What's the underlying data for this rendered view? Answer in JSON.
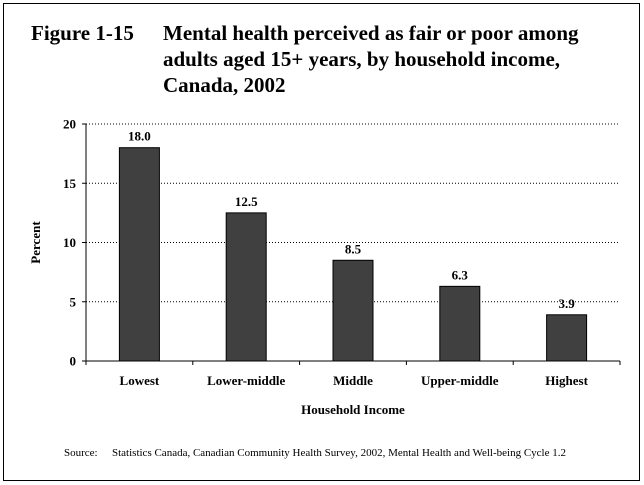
{
  "figure": {
    "number": "Figure 1-15",
    "title": "Mental health perceived as fair or poor among adults aged 15+ years, by household income, Canada, 2002"
  },
  "source": {
    "label": "Source:",
    "text": "Statistics Canada, Canadian Community Health Survey, 2002, Mental Health and Well-being Cycle 1.2"
  },
  "chart_data": {
    "type": "bar",
    "title": "Mental health perceived as fair or poor among adults aged 15+ years, by household income, Canada, 2002",
    "xlabel": "Household Income",
    "ylabel": "Percent",
    "categories": [
      "Lowest",
      "Lower-middle",
      "Middle",
      "Upper-middle",
      "Highest"
    ],
    "values": [
      18.0,
      12.5,
      8.5,
      6.3,
      3.9
    ],
    "value_labels": [
      "18.0",
      "12.5",
      "8.5",
      "6.3",
      "3.9"
    ],
    "ylim": [
      0,
      20
    ],
    "yticks": [
      0,
      5,
      10,
      15,
      20
    ],
    "grid": "horizontal dotted",
    "legend": "none",
    "bar_color": "#404040",
    "bar_outline": "#000000"
  }
}
